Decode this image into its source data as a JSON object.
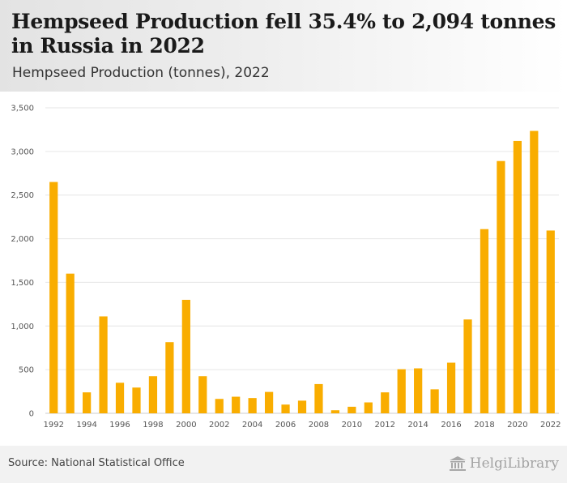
{
  "header": {
    "title": "Hempseed Production fell 35.4% to 2,094 tonnes in Russia in 2022",
    "subtitle": "Hempseed Production (tonnes), 2022"
  },
  "footer": {
    "source": "Source: National Statistical Office",
    "logo_text": "HelgiLibrary"
  },
  "colors": {
    "bar": "#f9ad00",
    "grid": "#e6e6e6",
    "axis_text": "#555555"
  },
  "chart_data": {
    "type": "bar",
    "title": "Hempseed Production (tonnes), 2022",
    "xlabel": "",
    "ylabel": "",
    "ylim": [
      0,
      3500
    ],
    "yticks": [
      0,
      500,
      1000,
      1500,
      2000,
      2500,
      3000,
      3500
    ],
    "ytick_labels": [
      "0",
      "500",
      "1,000",
      "1,500",
      "2,000",
      "2,500",
      "3,000",
      "3,500"
    ],
    "grid": true,
    "categories": [
      "1992",
      "1993",
      "1994",
      "1995",
      "1996",
      "1997",
      "1998",
      "1999",
      "2000",
      "2001",
      "2002",
      "2003",
      "2004",
      "2005",
      "2006",
      "2007",
      "2008",
      "2009",
      "2010",
      "2011",
      "2012",
      "2013",
      "2014",
      "2015",
      "2016",
      "2017",
      "2018",
      "2019",
      "2020",
      "2021",
      "2022"
    ],
    "xtick_labels": [
      "1992",
      "1994",
      "1996",
      "1998",
      "2000",
      "2002",
      "2004",
      "2006",
      "2008",
      "2010",
      "2012",
      "2014",
      "2016",
      "2018",
      "2020",
      "2022"
    ],
    "values": [
      2650,
      1600,
      240,
      1110,
      350,
      295,
      425,
      815,
      1300,
      425,
      165,
      190,
      175,
      245,
      100,
      145,
      335,
      35,
      75,
      125,
      240,
      505,
      515,
      275,
      580,
      1075,
      2110,
      2890,
      3120,
      3235,
      2094
    ]
  }
}
